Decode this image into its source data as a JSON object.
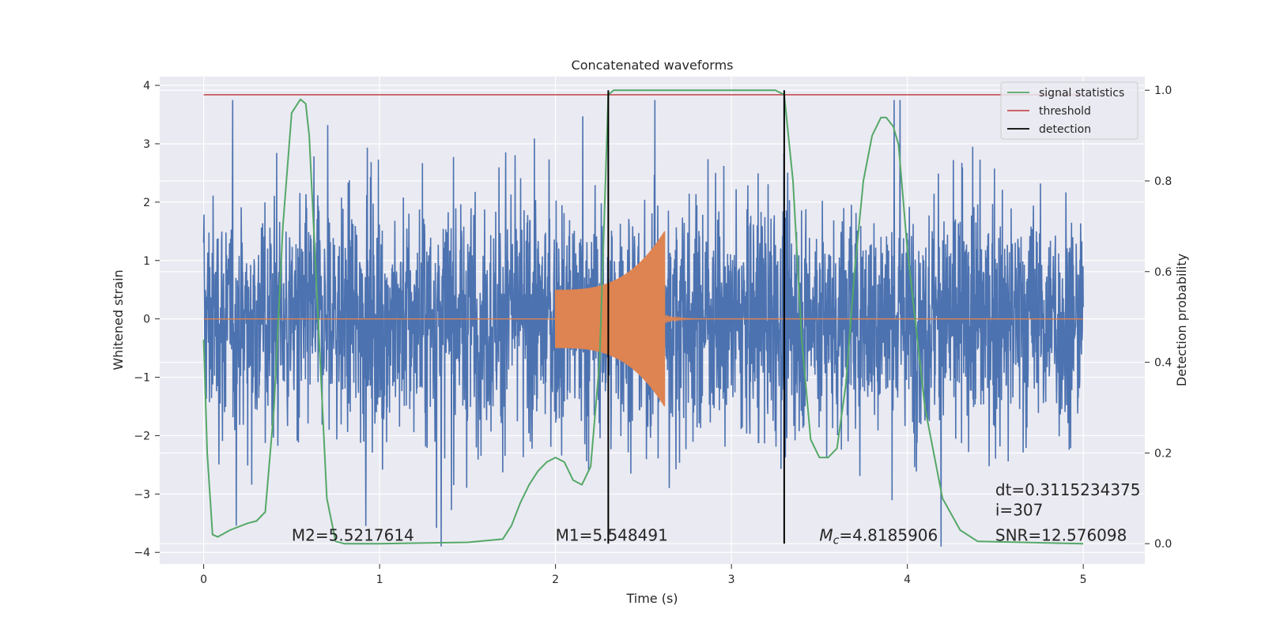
{
  "chart_data": {
    "type": "line",
    "title": "Concatenated waveforms",
    "xlabel": "Time (s)",
    "ylabel": "Whitened strain",
    "ylabel_right": "Detection probability",
    "xlim": [
      -0.25,
      5.35
    ],
    "ylim": [
      -4.2,
      4.15
    ],
    "ylim_right": [
      -0.045,
      1.03
    ],
    "xticks": [
      0,
      1,
      2,
      3,
      4,
      5
    ],
    "yticks": [
      -4,
      -3,
      -2,
      -1,
      0,
      1,
      2,
      3,
      4
    ],
    "yticks_right": [
      0.0,
      0.2,
      0.4,
      0.6,
      0.8,
      1.0
    ],
    "yticks_right_labels": [
      "0.0",
      "0.2",
      "0.4",
      "0.6",
      "0.8",
      "1.0"
    ],
    "grid": true,
    "legend_position": "top-right",
    "colors": {
      "strain": "#4c72b0",
      "template": "#dd8452",
      "signal_statistics": "#55a868",
      "threshold": "#c44e52",
      "detection": "#000000",
      "background": "#eaeaf2",
      "grid": "#ffffff"
    },
    "series": [
      {
        "name": "signal statistics",
        "axis": "right",
        "x": [
          0,
          0.02,
          0.05,
          0.08,
          0.15,
          0.25,
          0.3,
          0.35,
          0.4,
          0.45,
          0.5,
          0.55,
          0.58,
          0.6,
          0.65,
          0.7,
          0.75,
          0.8,
          1.0,
          1.5,
          1.7,
          1.75,
          1.8,
          1.85,
          1.9,
          1.95,
          2.0,
          2.05,
          2.1,
          2.15,
          2.2,
          2.25,
          2.28,
          2.3,
          2.33,
          2.4,
          2.8,
          3.25,
          3.3,
          3.35,
          3.4,
          3.45,
          3.5,
          3.55,
          3.6,
          3.65,
          3.7,
          3.75,
          3.8,
          3.85,
          3.88,
          3.92,
          3.95,
          4.0,
          4.1,
          4.2,
          4.3,
          4.4,
          5.0
        ],
        "y": [
          0.45,
          0.2,
          0.02,
          0.015,
          0.03,
          0.045,
          0.05,
          0.07,
          0.3,
          0.7,
          0.95,
          0.98,
          0.97,
          0.9,
          0.5,
          0.1,
          0.005,
          0.0,
          0.0,
          0.003,
          0.01,
          0.04,
          0.09,
          0.13,
          0.16,
          0.18,
          0.19,
          0.18,
          0.14,
          0.13,
          0.17,
          0.4,
          0.75,
          0.99,
          1.0,
          1.0,
          1.0,
          1.0,
          0.99,
          0.8,
          0.45,
          0.23,
          0.19,
          0.19,
          0.21,
          0.35,
          0.6,
          0.8,
          0.9,
          0.94,
          0.94,
          0.92,
          0.88,
          0.65,
          0.3,
          0.1,
          0.03,
          0.005,
          0.0
        ]
      },
      {
        "name": "threshold",
        "axis": "right",
        "x": [
          0,
          5
        ],
        "y": [
          0.99,
          0.99
        ]
      },
      {
        "name": "detection",
        "axis": "right",
        "x_values": [
          2.3,
          3.3
        ],
        "y": [
          0,
          1
        ]
      }
    ],
    "strain_noise_amplitude": 2.4,
    "template": {
      "x_start": 2.0,
      "x_end": 2.62,
      "amplitude_start": 0.5,
      "amplitude_peak": 1.5
    },
    "annotations": [
      {
        "id": "m2",
        "text": "M2=5.5217614",
        "x": 0.5,
        "y": -3.8
      },
      {
        "id": "m1",
        "text": "M1=5.548491",
        "x": 2.0,
        "y": -3.8
      },
      {
        "id": "mc",
        "text": "=4.8185906",
        "math_symbol": "M",
        "math_subscript": "c",
        "x": 3.5,
        "y": -3.8
      },
      {
        "id": "dt",
        "text": "dt=0.3115234375",
        "x": 4.5,
        "y": -3.02
      },
      {
        "id": "i",
        "text": " i=307",
        "x": 4.5,
        "y": -3.37
      },
      {
        "id": "snr",
        "text": "SNR=12.576098",
        "x": 4.5,
        "y": -3.8
      }
    ]
  }
}
